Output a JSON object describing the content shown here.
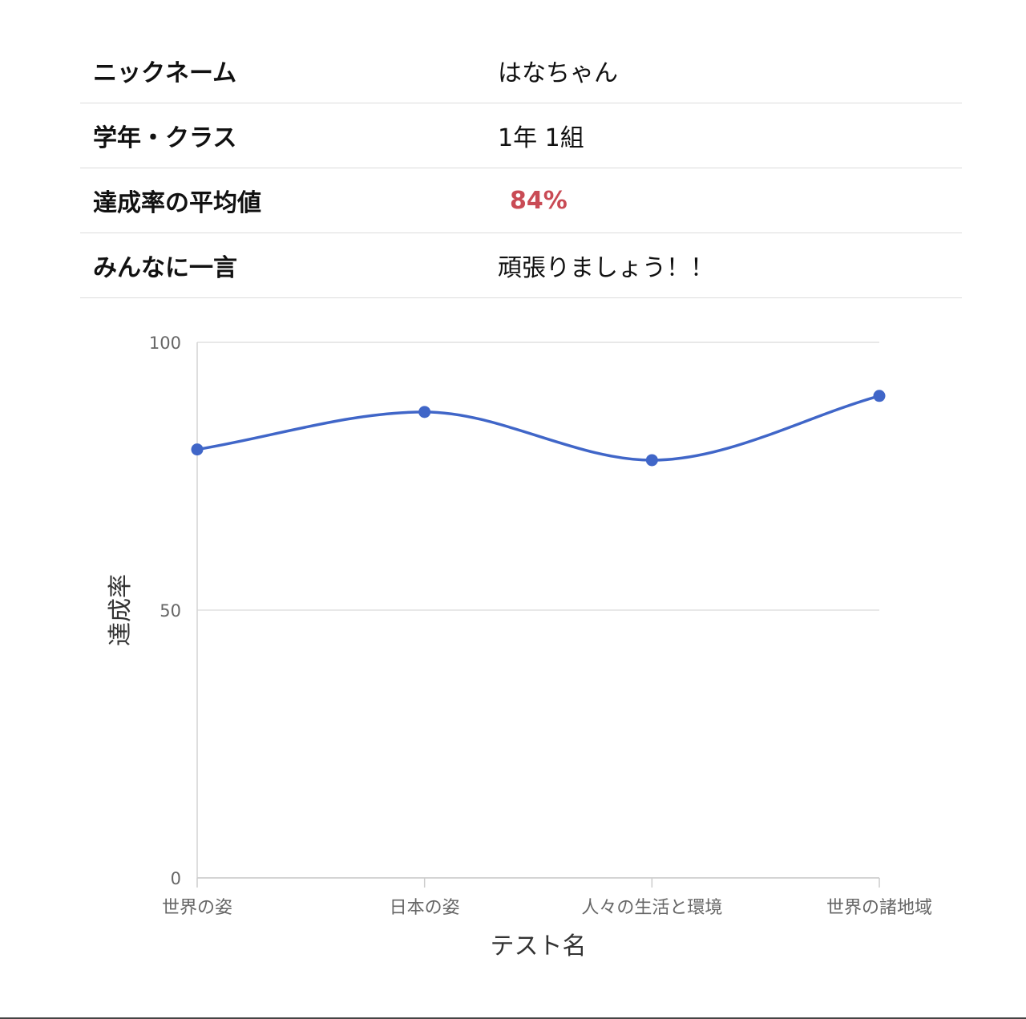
{
  "profile": {
    "rows": [
      {
        "label": "ニックネーム",
        "value": "はなちゃん"
      },
      {
        "label": "学年・クラス",
        "value": "1年 1組"
      },
      {
        "label": "達成率の平均値",
        "value": "84%"
      },
      {
        "label": "みんなに一言",
        "value": "頑張りましょう！！"
      }
    ]
  },
  "colors": {
    "series_line": "#4066c8",
    "highlight_value": "#c94b55",
    "gridline": "#e0e0e0"
  },
  "chart_data": {
    "type": "line",
    "title": "",
    "xlabel": "テスト名",
    "ylabel": "達成率",
    "categories": [
      "世界の姿",
      "日本の姿",
      "人々の生活と環境",
      "世界の諸地域"
    ],
    "series": [
      {
        "values": [
          80,
          87,
          78,
          90
        ]
      }
    ],
    "ylim": [
      0,
      100
    ],
    "yticks": [
      "0",
      "50",
      "100"
    ],
    "smooth": true,
    "grid": true,
    "legend": "none"
  }
}
